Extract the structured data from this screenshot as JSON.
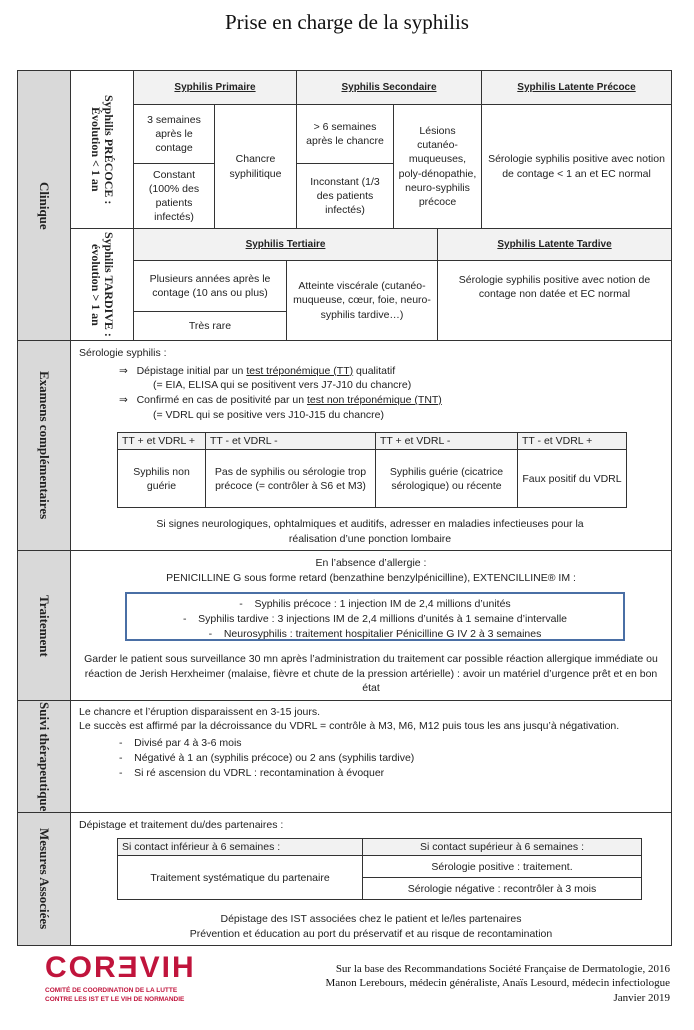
{
  "title": "Prise en charge de la syphilis",
  "clinique": {
    "label": "Clinique",
    "precoce_label": "Syphilis PRÉCOCE : Évolution < 1 an",
    "tardive_label": "Syphilis TARDIVE : évolution > 1 an",
    "primaire": {
      "header": "Syphilis Primaire",
      "delai": "3 semaines après le contage",
      "frequence": "Constant (100% des patients infectés)",
      "signe": "Chancre syphilitique"
    },
    "secondaire": {
      "header": "Syphilis Secondaire",
      "delai": "> 6 semaines après le chancre",
      "frequence": "Inconstant (1/3 des patients infectés)",
      "signe": "Lésions cutanéo-muqueuses, poly-dénopathie, neuro-syphilis précoce"
    },
    "latente_precoce": {
      "header": "Syphilis Latente Précoce",
      "text": "Sérologie syphilis positive avec notion de contage < 1 an et EC normal"
    },
    "tertiaire": {
      "header": "Syphilis Tertiaire",
      "delai": "Plusieurs années après le contage (10 ans ou plus)",
      "frequence": "Très rare",
      "signe": "Atteinte viscérale (cutanéo-muqueuse, cœur, foie, neuro-syphilis tardive…)"
    },
    "latente_tardive": {
      "header": "Syphilis Latente Tardive",
      "text": "Sérologie syphilis positive avec notion de contage non datée et EC normal"
    }
  },
  "examens": {
    "label": "Examens complémentaires",
    "intro": "Sérologie syphilis :",
    "arrow": "⇒",
    "l1_pre": "Dépistage initial par un ",
    "l1_u": "test tréponémique (TT)",
    "l1_post": " qualitatif",
    "l1_sub": "(= EIA, ELISA qui se positivent vers J7-J10 du chancre)",
    "l2_pre": "Confirmé en cas de positivité par un ",
    "l2_u": "test non tréponémique (TNT)",
    "l2_sub": "(= VDRL qui se positive vers J10-J15 du chancre)",
    "table": {
      "headers": [
        "TT + et VDRL +",
        "TT - et VDRL -",
        "TT + et VDRL -",
        "TT - et VDRL +"
      ],
      "values": [
        "Syphilis non guérie",
        "Pas de syphilis ou sérologie trop précoce (= contrôler à S6 et M3)",
        "Syphilis guérie (cicatrice sérologique) ou récente",
        "Faux positif du VDRL"
      ]
    },
    "note": "Si signes neurologiques, ophtalmiques et auditifs, adresser en maladies infectieuses pour la réalisation d’une ponction lombaire"
  },
  "traitement": {
    "label": "Traitement",
    "l1": "En l’absence d’allergie :",
    "l2": "PENICILLINE G sous forme retard (benzathine benzylpénicilline), EXTENCILLINE® IM :",
    "items": [
      "Syphilis précoce : 1 injection IM de 2,4 millions d’unités",
      "Syphilis tardive : 3 injections IM de 2,4 millions d’unités à 1 semaine d’intervalle",
      "Neurosyphilis : traitement hospitalier Pénicilline G IV 2 à 3 semaines"
    ],
    "note": "Garder le patient sous surveillance 30 mn après l’administration du traitement car possible réaction allergique immédiate ou réaction de Jerish Herxheimer (malaise, fièvre et chute de la pression artérielle) : avoir un matériel d’urgence prêt et en bon état",
    "box_color": "#4a6fa5"
  },
  "suivi": {
    "label": "Suivi thérapeutique",
    "l1": "Le chancre et l’éruption disparaissent en 3-15 jours.",
    "l2": "Le succès est affirmé par la décroissance du VDRL = contrôle à M3, M6, M12 puis tous les ans jusqu’à négativation.",
    "items": [
      "Divisé par 4 à 3-6 mois",
      "Négativé à 1 an (syphilis précoce) ou 2 ans (syphilis tardive)",
      "Si ré ascension du VDRL : recontamination à évoquer"
    ]
  },
  "mesures": {
    "label": "Mesures Associées",
    "intro": "Dépistage et traitement du/des partenaires :",
    "h1": "Si contact inférieur à 6 semaines :",
    "h2": "Si contact supérieur à 6 semaines :",
    "c1": "Traitement systématique du partenaire",
    "c2": "Sérologie positive : traitement.",
    "c3": "Sérologie négative : recontrôler à 3 mois",
    "n1": "Dépistage des IST associées chez le patient et le/les partenaires",
    "n2": "Prévention et éducation au port du préservatif et au risque de recontamination"
  },
  "footer": {
    "logo": "CORƎVIH",
    "logo_sub1": "COMITÉ DE COORDINATION DE LA LUTTE",
    "logo_sub2": "CONTRE LES IST ET LE VIH DE NORMANDIE",
    "l1": "Sur la base  des Recommandations Société Française de Dermatologie, 2016",
    "l2": "Manon Lerebours, médecin généraliste, Anaïs Lesourd, médecin infectiologue",
    "l3": "Janvier 2019",
    "brand_color": "#c0143c"
  },
  "section_label_bg": "#d9d9d9"
}
